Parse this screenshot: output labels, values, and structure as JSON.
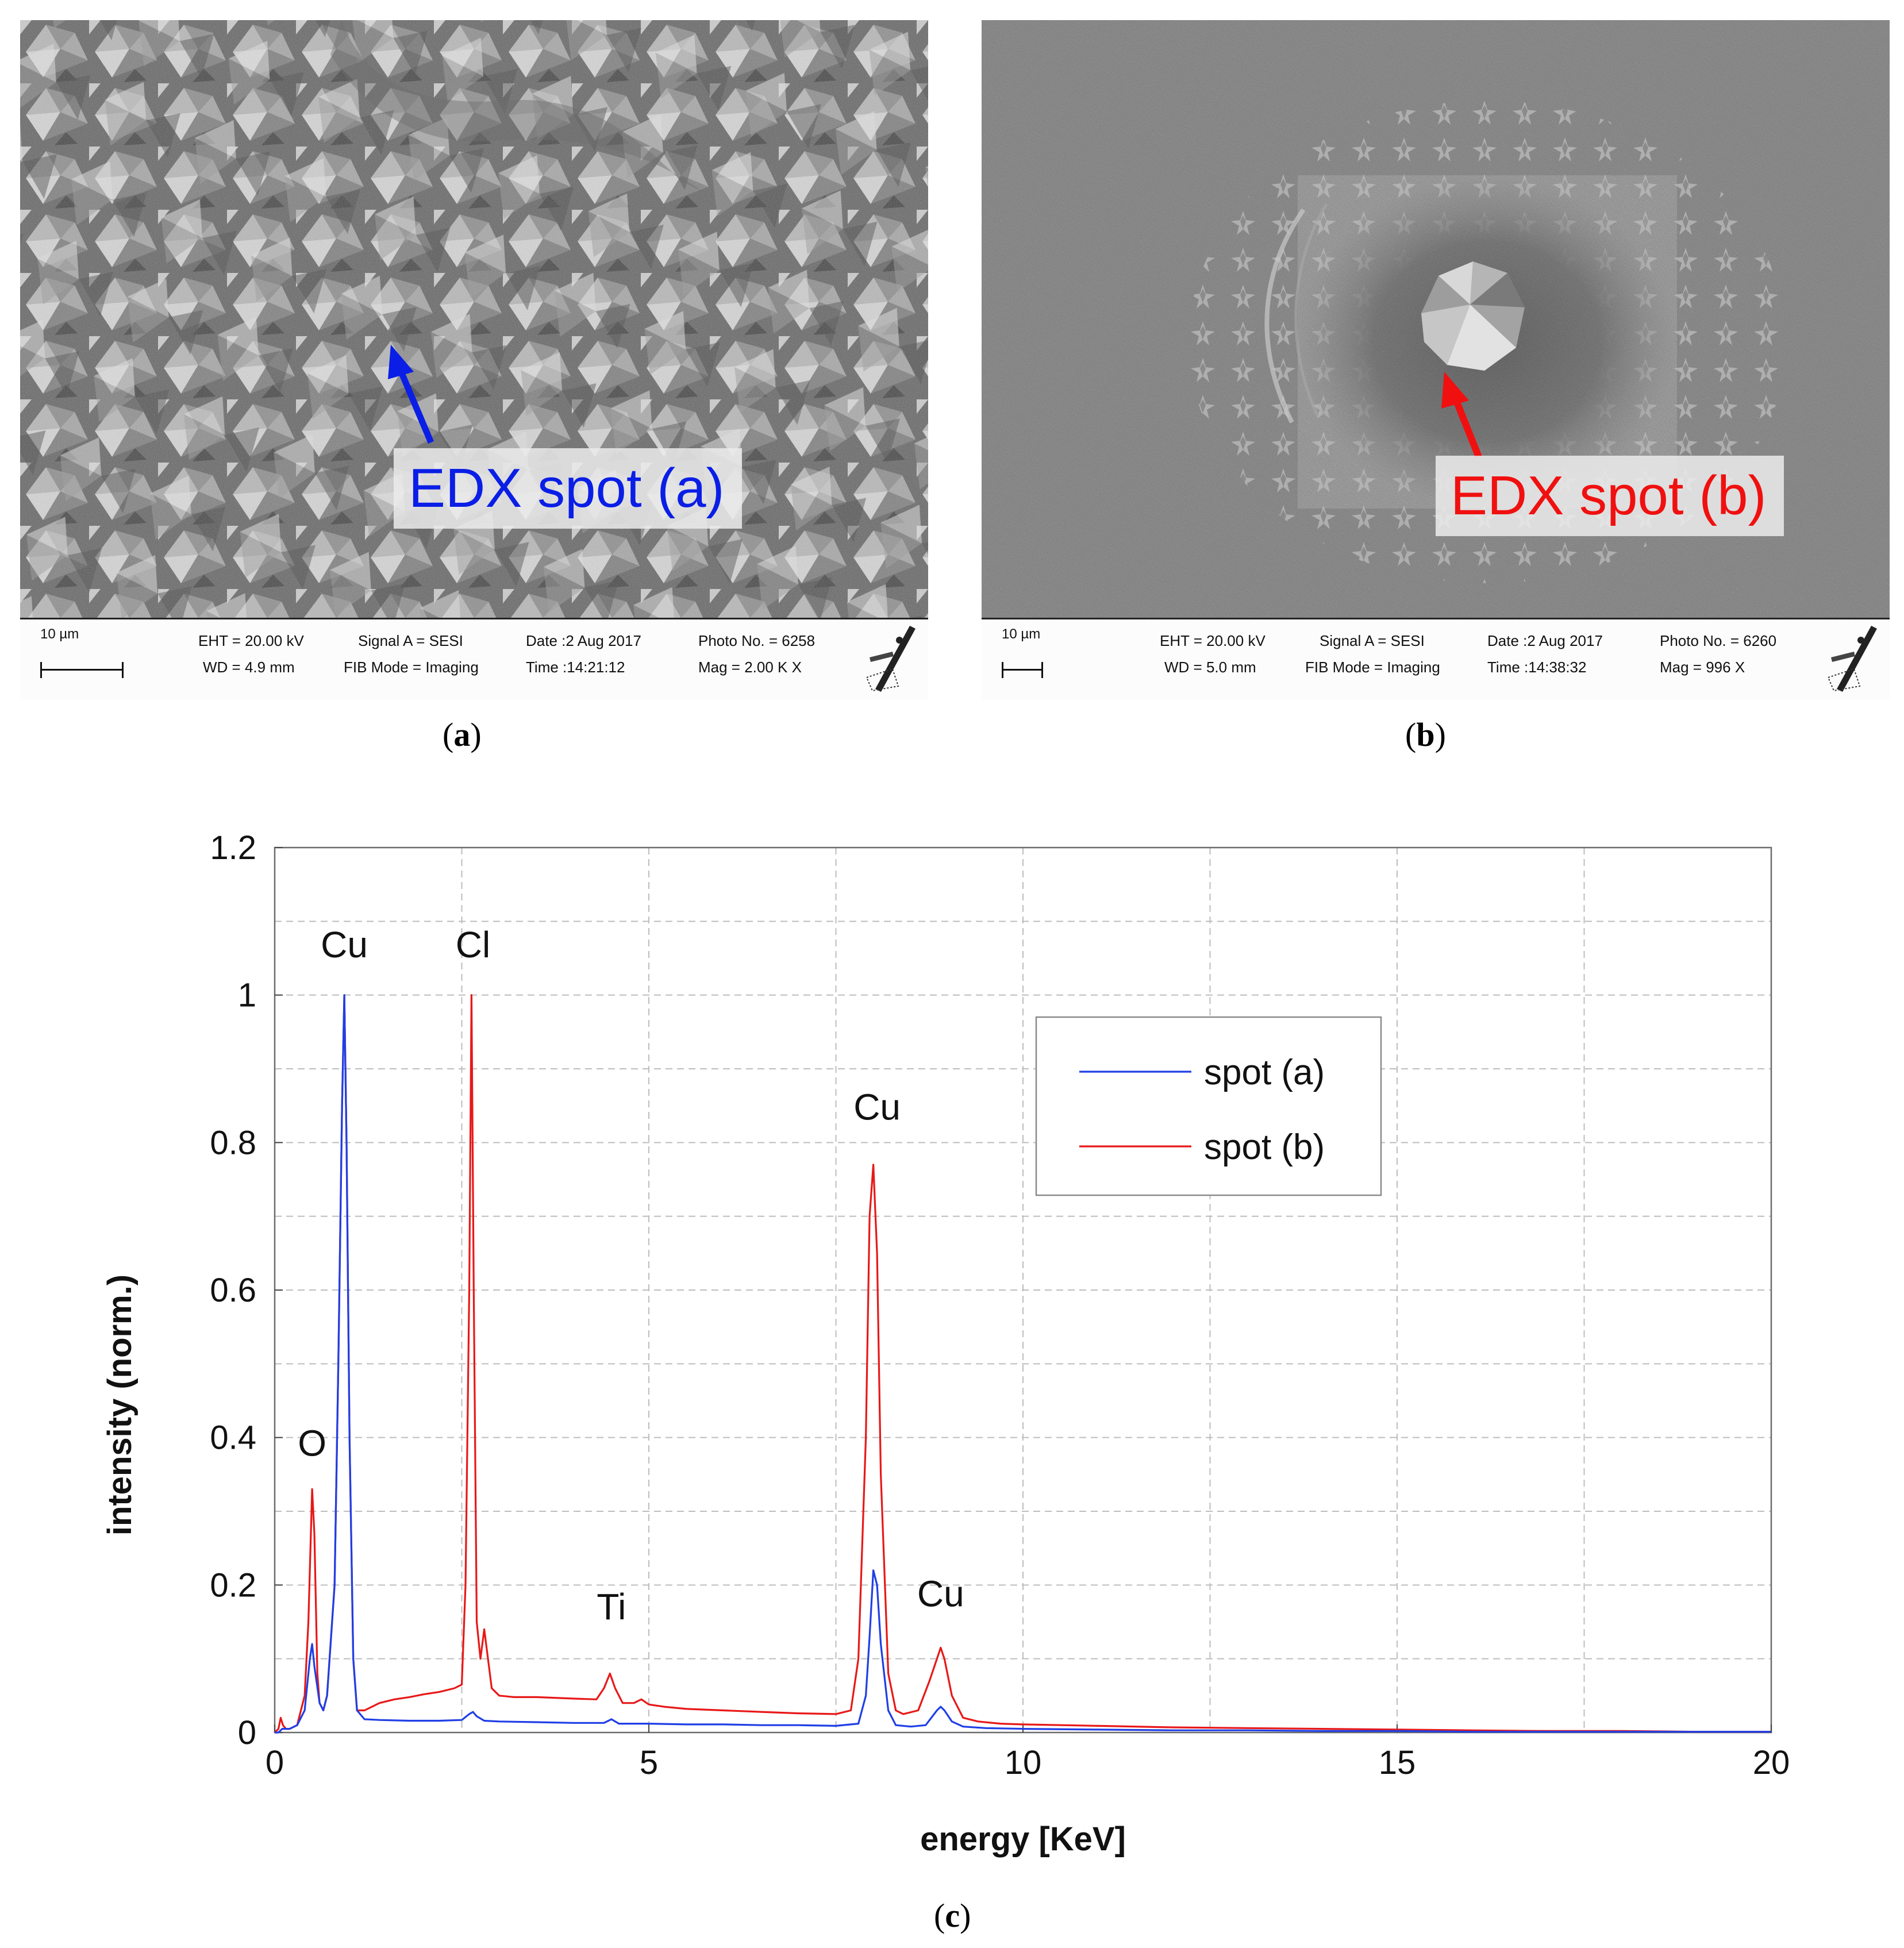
{
  "panel_a": {
    "edx_label": "EDX spot (a)",
    "edx_color": "#0a1ee6",
    "caption": "a",
    "databar": {
      "scale": "10 µm",
      "eht": "EHT = 20.00 kV",
      "wd": "WD =  4.9 mm",
      "signal": "Signal A = SESI",
      "fib": "FIB Mode = Imaging",
      "date": "Date :2 Aug 2017",
      "time": "Time :14:21:12",
      "photo": "Photo No. = 6258",
      "mag": "Mag =    2.00 K X"
    }
  },
  "panel_b": {
    "edx_label": "EDX spot (b)",
    "edx_color": "#f01010",
    "caption": "b",
    "databar": {
      "scale": "10 µm",
      "eht": "EHT = 20.00 kV",
      "wd": "WD =  5.0 mm",
      "signal": "Signal A = SESI",
      "fib": "FIB Mode = Imaging",
      "date": "Date :2 Aug 2017",
      "time": "Time :14:38:32",
      "photo": "Photo No. = 6260",
      "mag": "Mag =    996 X"
    }
  },
  "chart_caption": "c",
  "chart_data": {
    "type": "line",
    "title": "",
    "xlabel": "energy [KeV]",
    "ylabel": "intensity (norm.)",
    "xlim": [
      0,
      20
    ],
    "ylim": [
      0,
      1.2
    ],
    "xticks": [
      "0",
      "5",
      "10",
      "15",
      "20"
    ],
    "yticks": [
      "0",
      "0.2",
      "0.4",
      "0.6",
      "0.8",
      "1",
      "1.2"
    ],
    "grid": true,
    "legend_position": "top-right",
    "series": [
      {
        "name": "spot (a)",
        "color": "#1f3fe6",
        "x": [
          0,
          0.05,
          0.1,
          0.2,
          0.3,
          0.4,
          0.47,
          0.5,
          0.53,
          0.6,
          0.65,
          0.7,
          0.8,
          0.85,
          0.9,
          0.93,
          0.96,
          1.0,
          1.05,
          1.1,
          1.2,
          1.4,
          1.8,
          2.2,
          2.5,
          2.6,
          2.65,
          2.7,
          2.8,
          3.0,
          3.5,
          4.0,
          4.4,
          4.5,
          4.6,
          5.0,
          5.5,
          6.0,
          6.5,
          7.0,
          7.5,
          7.8,
          7.9,
          7.95,
          8.0,
          8.05,
          8.1,
          8.2,
          8.3,
          8.5,
          8.7,
          8.85,
          8.9,
          8.95,
          9.05,
          9.2,
          9.5,
          10,
          11,
          12,
          13,
          14,
          15,
          16,
          17,
          18,
          19,
          20
        ],
        "y": [
          0,
          0,
          0.005,
          0.005,
          0.01,
          0.03,
          0.1,
          0.12,
          0.09,
          0.04,
          0.03,
          0.05,
          0.2,
          0.5,
          0.85,
          1.0,
          0.8,
          0.4,
          0.1,
          0.03,
          0.018,
          0.017,
          0.016,
          0.016,
          0.017,
          0.025,
          0.028,
          0.022,
          0.016,
          0.015,
          0.014,
          0.013,
          0.013,
          0.018,
          0.012,
          0.012,
          0.011,
          0.011,
          0.01,
          0.01,
          0.009,
          0.012,
          0.05,
          0.13,
          0.22,
          0.2,
          0.12,
          0.03,
          0.01,
          0.008,
          0.01,
          0.03,
          0.035,
          0.03,
          0.015,
          0.008,
          0.006,
          0.005,
          0.004,
          0.003,
          0.003,
          0.002,
          0.002,
          0.001,
          0.001,
          0.001,
          0.001,
          0.001
        ]
      },
      {
        "name": "spot (b)",
        "color": "#e81818",
        "x": [
          0,
          0.05,
          0.08,
          0.11,
          0.15,
          0.2,
          0.3,
          0.4,
          0.45,
          0.5,
          0.53,
          0.57,
          0.6,
          0.65,
          0.7,
          0.8,
          0.85,
          0.9,
          0.93,
          0.96,
          1.0,
          1.05,
          1.1,
          1.2,
          1.4,
          1.6,
          1.8,
          2.0,
          2.2,
          2.4,
          2.5,
          2.55,
          2.6,
          2.63,
          2.66,
          2.7,
          2.75,
          2.8,
          2.85,
          2.9,
          3.0,
          3.2,
          3.5,
          4.0,
          4.3,
          4.4,
          4.48,
          4.55,
          4.65,
          4.8,
          4.9,
          5.0,
          5.2,
          5.5,
          6.0,
          6.5,
          7.0,
          7.5,
          7.7,
          7.8,
          7.9,
          7.95,
          8.0,
          8.05,
          8.1,
          8.2,
          8.3,
          8.4,
          8.6,
          8.75,
          8.85,
          8.9,
          8.95,
          9.05,
          9.2,
          9.4,
          9.7,
          10,
          11,
          12,
          13,
          14,
          15,
          16,
          17,
          18,
          19,
          20
        ],
        "y": [
          0,
          0.005,
          0.02,
          0.01,
          0.005,
          0.005,
          0.01,
          0.05,
          0.15,
          0.33,
          0.27,
          0.08,
          0.04,
          0.03,
          0.05,
          0.2,
          0.5,
          0.85,
          1.0,
          0.8,
          0.4,
          0.1,
          0.03,
          0.03,
          0.04,
          0.045,
          0.048,
          0.052,
          0.055,
          0.06,
          0.065,
          0.2,
          0.6,
          1.0,
          0.6,
          0.15,
          0.1,
          0.14,
          0.1,
          0.06,
          0.05,
          0.048,
          0.048,
          0.046,
          0.045,
          0.06,
          0.08,
          0.06,
          0.04,
          0.04,
          0.045,
          0.038,
          0.035,
          0.032,
          0.03,
          0.028,
          0.026,
          0.025,
          0.03,
          0.1,
          0.4,
          0.7,
          0.77,
          0.65,
          0.35,
          0.08,
          0.03,
          0.025,
          0.03,
          0.07,
          0.1,
          0.115,
          0.1,
          0.05,
          0.02,
          0.015,
          0.012,
          0.011,
          0.009,
          0.007,
          0.006,
          0.005,
          0.004,
          0.003,
          0.002,
          0.002,
          0.001,
          0.001
        ]
      }
    ],
    "annotations": [
      {
        "text": "Cu",
        "x": 0.93,
        "y": 1.02
      },
      {
        "text": "Cl",
        "x": 2.65,
        "y": 1.02
      },
      {
        "text": "O",
        "x": 0.5,
        "y": 0.34
      },
      {
        "text": "Ti",
        "x": 4.5,
        "y": 0.13
      },
      {
        "text": "Cu",
        "x": 8.05,
        "y": 0.8
      },
      {
        "text": "Cu",
        "x": 8.9,
        "y": 0.14
      }
    ]
  }
}
